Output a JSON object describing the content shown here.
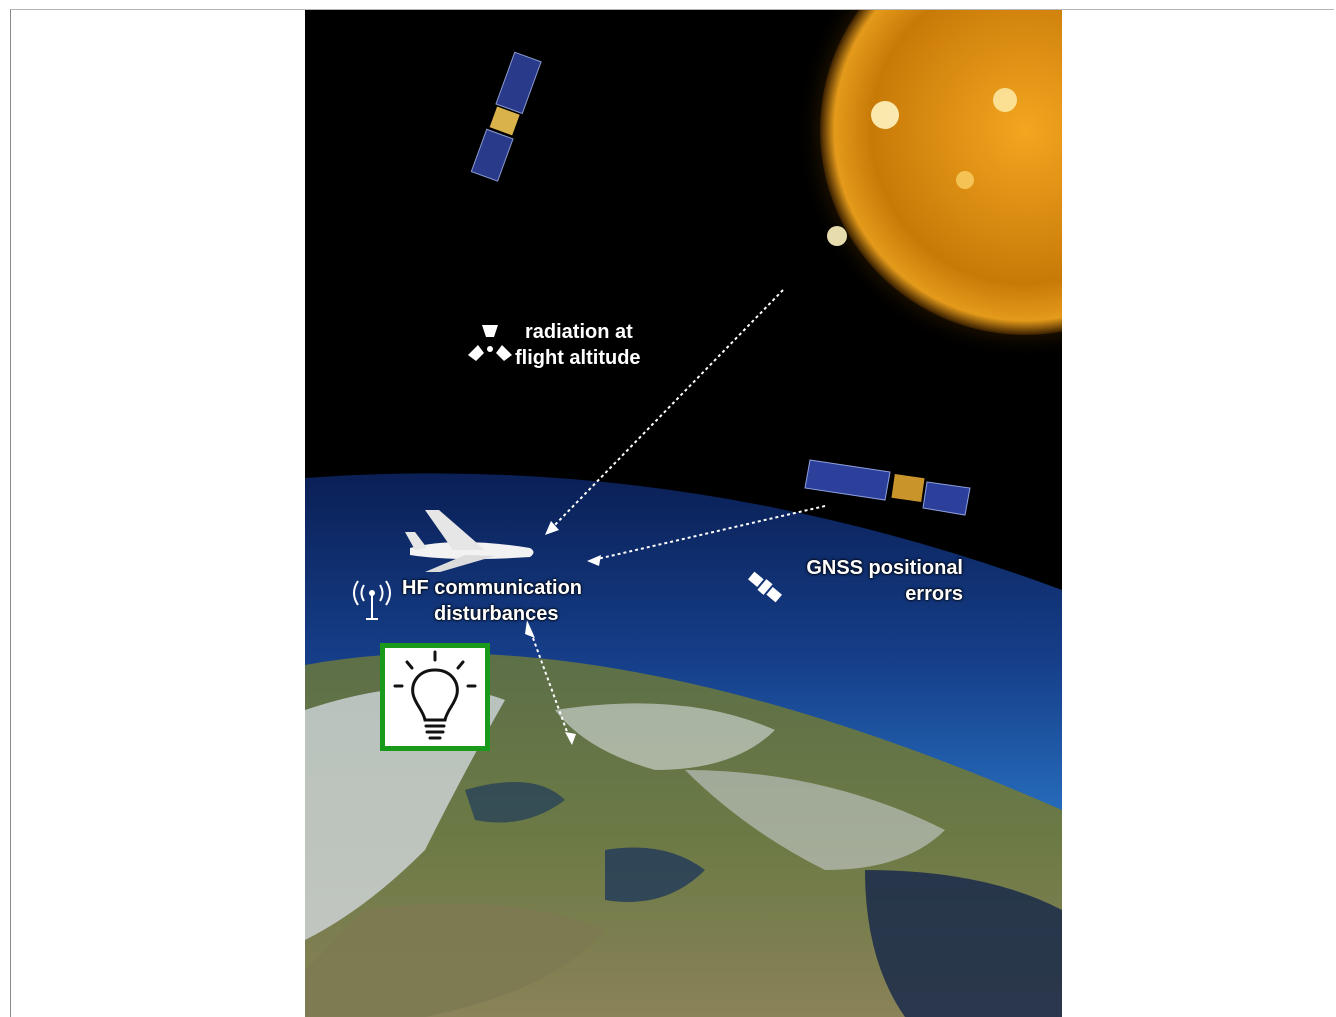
{
  "labels": {
    "radiation_line1": "radiation at",
    "radiation_line2": "flight altitude",
    "hf_line1": "HF communication",
    "hf_line2": "disturbances",
    "gnss_line1": "GNSS  positional",
    "gnss_line2": "errors"
  },
  "icons": {
    "radiation": "radiation-icon",
    "antenna": "antenna-icon",
    "satellite": "satellite-icon",
    "lightbulb": "lightbulb-icon"
  },
  "colors": {
    "sun": "#e89a10",
    "atmosphere": "#1d5fb0",
    "highlight_border": "#1a9a1a"
  }
}
